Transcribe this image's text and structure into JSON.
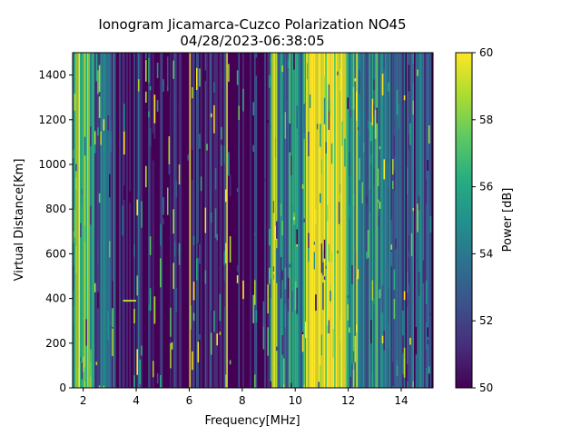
{
  "chart_data": {
    "type": "heatmap",
    "title_line1": "Ionogram Jicamarca-Cuzco Polarization NO45",
    "title_line2": "04/28/2023-06:38:05",
    "xlabel": "Frequency[MHz]",
    "ylabel": "Virtual Distance[Km]",
    "xlim": [
      1.6,
      15.2
    ],
    "ylim": [
      0,
      1500
    ],
    "xticks": [
      2,
      4,
      6,
      8,
      10,
      12,
      14
    ],
    "yticks": [
      0,
      200,
      400,
      600,
      800,
      1000,
      1200,
      1400
    ],
    "colorbar": {
      "label": "Power [dB]",
      "min": 50,
      "max": 60,
      "ticks": [
        50,
        52,
        54,
        56,
        58,
        60
      ],
      "colormap": "viridis"
    },
    "bands": [
      {
        "x0": 1.6,
        "x1": 2.4,
        "level": 0.75
      },
      {
        "x0": 2.4,
        "x1": 3.2,
        "level": 0.35
      },
      {
        "x0": 3.2,
        "x1": 9.0,
        "level": 0.08
      },
      {
        "x0": 9.0,
        "x1": 9.3,
        "level": 0.7
      },
      {
        "x0": 9.3,
        "x1": 10.4,
        "level": 0.45
      },
      {
        "x0": 10.4,
        "x1": 11.9,
        "level": 0.95
      },
      {
        "x0": 11.9,
        "x1": 12.5,
        "level": 0.55
      },
      {
        "x0": 12.5,
        "x1": 13.6,
        "level": 0.45
      },
      {
        "x0": 13.6,
        "x1": 15.2,
        "level": 0.25
      }
    ],
    "vertical_lines_mhz": [
      6.0,
      7.4,
      9.2,
      10.4,
      11.7,
      12.3
    ],
    "echo_trace": {
      "x": [
        3.5,
        4.0
      ],
      "y": 390
    }
  }
}
